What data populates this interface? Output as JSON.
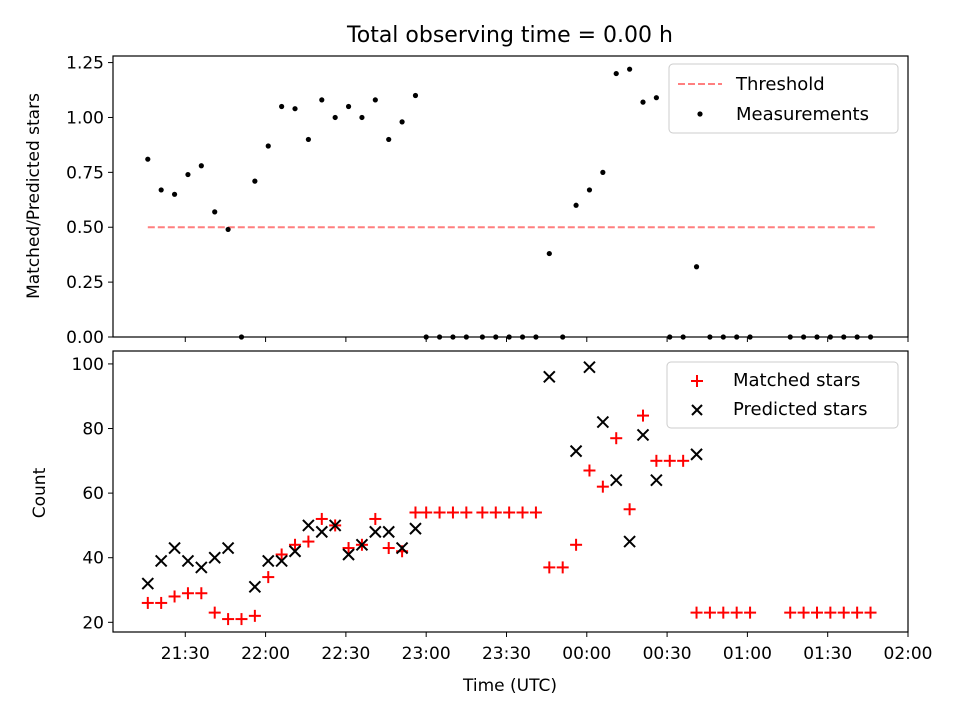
{
  "chart_data": [
    {
      "type": "scatter",
      "title": "Total observing time = 0.00 h",
      "ylabel": "Matched/Predicted stars",
      "xlabel": "",
      "xlim": [
        "21:03",
        "02:00"
      ],
      "ylim": [
        0,
        1.28
      ],
      "x_tick_labels": [
        "21:30",
        "22:00",
        "22:30",
        "23:00",
        "23:30",
        "00:00",
        "00:30",
        "01:00",
        "01:30",
        "02:00"
      ],
      "y_ticks": [
        0.0,
        0.25,
        0.5,
        0.75,
        1.0,
        1.25
      ],
      "y_tick_labels": [
        "0.00",
        "0.25",
        "0.50",
        "0.75",
        "1.00",
        "1.25"
      ],
      "legend_position": "top-right",
      "grid": false,
      "threshold": {
        "name": "Threshold",
        "value": 0.5,
        "x_range": [
          "21:16",
          "01:48"
        ],
        "color": "#ff7f7f"
      },
      "series": [
        {
          "name": "Measurements",
          "color": "#000000",
          "x": [
            "21:16",
            "21:21",
            "21:26",
            "21:31",
            "21:36",
            "21:41",
            "21:46",
            "21:51",
            "21:56",
            "22:01",
            "22:06",
            "22:11",
            "22:16",
            "22:21",
            "22:26",
            "22:31",
            "22:36",
            "22:41",
            "22:46",
            "22:51",
            "22:56",
            "23:00",
            "23:05",
            "23:10",
            "23:15",
            "23:21",
            "23:26",
            "23:31",
            "23:36",
            "23:41",
            "23:46",
            "23:51",
            "23:56",
            "00:01",
            "00:06",
            "00:11",
            "00:16",
            "00:21",
            "00:26",
            "00:31",
            "00:36",
            "00:41",
            "00:46",
            "00:51",
            "00:56",
            "01:01",
            "01:16",
            "01:21",
            "01:26",
            "01:31",
            "01:36",
            "01:41",
            "01:46"
          ],
          "y": [
            0.81,
            0.67,
            0.65,
            0.74,
            0.78,
            0.57,
            0.49,
            0.0,
            0.71,
            0.87,
            1.05,
            1.04,
            0.9,
            1.08,
            1.0,
            1.05,
            1.0,
            1.08,
            0.9,
            0.98,
            1.1,
            0.0,
            0.0,
            0.0,
            0.0,
            0.0,
            0.0,
            0.0,
            0.0,
            0.0,
            0.38,
            0.0,
            0.6,
            0.67,
            0.75,
            1.2,
            1.22,
            1.07,
            1.09,
            0.0,
            0.0,
            0.32,
            0.0,
            0.0,
            0.0,
            0.0,
            0.0,
            0.0,
            0.0,
            0.0,
            0.0,
            0.0,
            0.0
          ]
        }
      ]
    },
    {
      "type": "scatter",
      "title": "",
      "ylabel": "Count",
      "xlabel": "Time (UTC)",
      "xlim": [
        "21:03",
        "02:00"
      ],
      "ylim": [
        17,
        104
      ],
      "x_tick_labels": [
        "21:30",
        "22:00",
        "22:30",
        "23:00",
        "23:30",
        "00:00",
        "00:30",
        "01:00",
        "01:30",
        "02:00"
      ],
      "y_ticks": [
        20,
        40,
        60,
        80,
        100
      ],
      "y_tick_labels": [
        "20",
        "40",
        "60",
        "80",
        "100"
      ],
      "legend_position": "top-right",
      "grid": false,
      "series": [
        {
          "name": "Matched stars",
          "color": "#ff0000",
          "marker": "plus",
          "x": [
            "21:16",
            "21:21",
            "21:26",
            "21:31",
            "21:36",
            "21:41",
            "21:46",
            "21:51",
            "21:56",
            "22:01",
            "22:06",
            "22:11",
            "22:16",
            "22:21",
            "22:26",
            "22:31",
            "22:36",
            "22:41",
            "22:46",
            "22:51",
            "22:56",
            "23:00",
            "23:05",
            "23:10",
            "23:15",
            "23:21",
            "23:26",
            "23:31",
            "23:36",
            "23:41",
            "23:46",
            "23:51",
            "23:56",
            "00:01",
            "00:06",
            "00:11",
            "00:16",
            "00:21",
            "00:26",
            "00:31",
            "00:36",
            "00:41",
            "00:46",
            "00:51",
            "00:56",
            "01:01",
            "01:16",
            "01:21",
            "01:26",
            "01:31",
            "01:36",
            "01:41",
            "01:46"
          ],
          "y": [
            26,
            26,
            28,
            29,
            29,
            23,
            21,
            21,
            22,
            34,
            41,
            44,
            45,
            52,
            50,
            43,
            44,
            52,
            43,
            42,
            54,
            54,
            54,
            54,
            54,
            54,
            54,
            54,
            54,
            54,
            37,
            37,
            44,
            67,
            62,
            77,
            55,
            84,
            70,
            70,
            70,
            23,
            23,
            23,
            23,
            23,
            23,
            23,
            23,
            23,
            23,
            23,
            23
          ]
        },
        {
          "name": "Predicted stars",
          "color": "#000000",
          "marker": "cross",
          "x": [
            "21:16",
            "21:21",
            "21:26",
            "21:31",
            "21:36",
            "21:41",
            "21:46",
            "21:56",
            "22:01",
            "22:06",
            "22:11",
            "22:16",
            "22:21",
            "22:26",
            "22:31",
            "22:36",
            "22:41",
            "22:46",
            "22:51",
            "22:56",
            "23:46",
            "23:56",
            "00:01",
            "00:06",
            "00:11",
            "00:16",
            "00:21",
            "00:26",
            "00:41"
          ],
          "y": [
            32,
            39,
            43,
            39,
            37,
            40,
            43,
            31,
            39,
            39,
            42,
            50,
            48,
            50,
            41,
            44,
            48,
            48,
            43,
            49,
            96,
            73,
            99,
            82,
            64,
            45,
            78,
            64,
            72
          ]
        }
      ]
    }
  ]
}
